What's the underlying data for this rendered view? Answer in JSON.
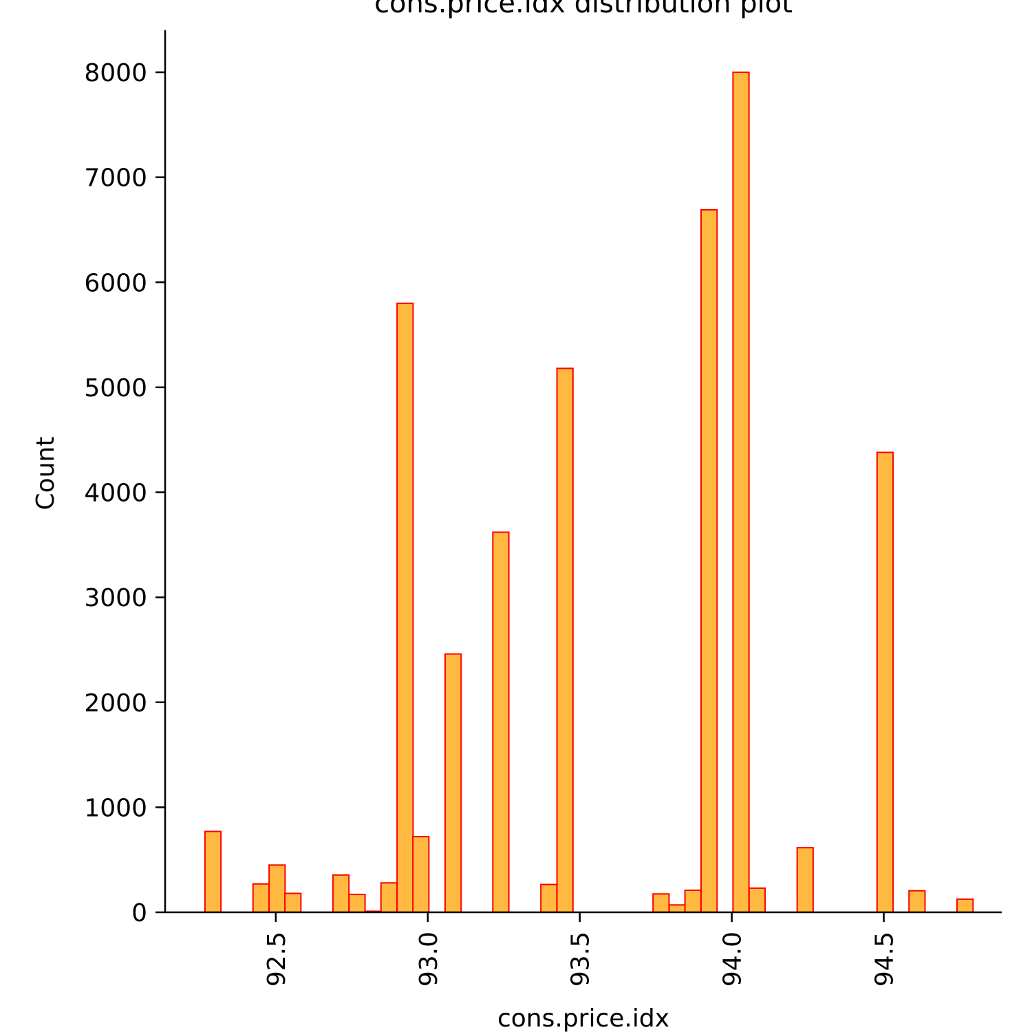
{
  "chart_data": {
    "type": "bar",
    "title": "cons.price.idx distribution plot",
    "xlabel": "cons.price.idx",
    "ylabel": "Count",
    "xlim": [
      92.136,
      94.888
    ],
    "ylim": [
      0,
      8400
    ],
    "x_ticks": [
      "92.5",
      "93.0",
      "93.5",
      "94.0",
      "94.5"
    ],
    "y_ticks": [
      "0",
      "1000",
      "2000",
      "3000",
      "4000",
      "5000",
      "6000",
      "7000",
      "8000"
    ],
    "bin_width": 0.0526,
    "grid": false,
    "legend": "none",
    "bar_fill": "#FFB940",
    "bar_edge": "#FF0000",
    "bins": [
      {
        "x0": 92.267,
        "count": 770
      },
      {
        "x0": 92.425,
        "count": 270
      },
      {
        "x0": 92.478,
        "count": 450
      },
      {
        "x0": 92.53,
        "count": 180
      },
      {
        "x0": 92.688,
        "count": 355
      },
      {
        "x0": 92.741,
        "count": 170
      },
      {
        "x0": 92.793,
        "count": 10
      },
      {
        "x0": 92.846,
        "count": 280
      },
      {
        "x0": 92.899,
        "count": 5800
      },
      {
        "x0": 92.951,
        "count": 720
      },
      {
        "x0": 93.057,
        "count": 2460
      },
      {
        "x0": 93.214,
        "count": 3620
      },
      {
        "x0": 93.372,
        "count": 265
      },
      {
        "x0": 93.425,
        "count": 5180
      },
      {
        "x0": 93.741,
        "count": 175
      },
      {
        "x0": 93.794,
        "count": 70
      },
      {
        "x0": 93.846,
        "count": 210
      },
      {
        "x0": 93.899,
        "count": 6690
      },
      {
        "x0": 94.004,
        "count": 8000
      },
      {
        "x0": 94.057,
        "count": 230
      },
      {
        "x0": 94.215,
        "count": 615
      },
      {
        "x0": 94.478,
        "count": 4380
      },
      {
        "x0": 94.583,
        "count": 205
      },
      {
        "x0": 94.741,
        "count": 125
      }
    ]
  }
}
